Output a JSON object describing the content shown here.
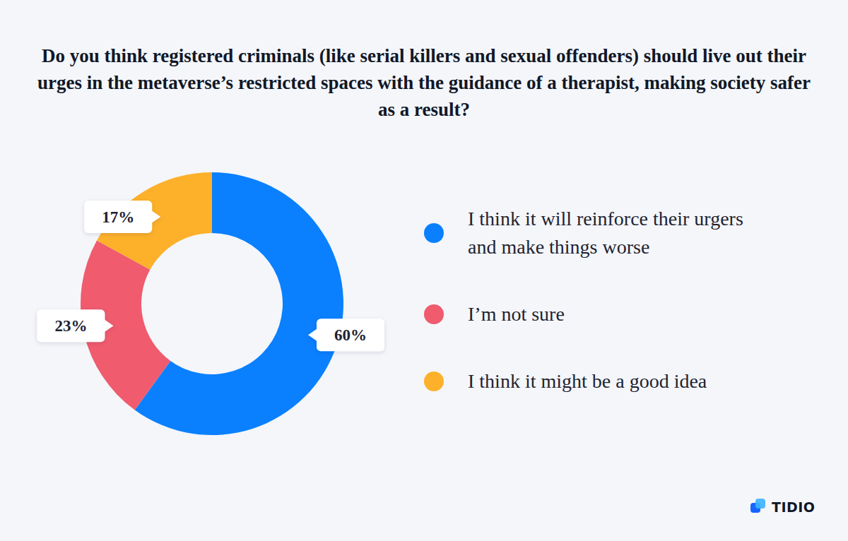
{
  "chart_data": {
    "type": "donut",
    "title": "Do you think registered criminals (like serial killers and sexual offenders) should live out their urges in the metaverse’s restricted spaces with the guidance of a therapist, making society safer as a result?",
    "categories": [
      "I think it will reinforce their urgers and make things worse",
      "I’m not sure",
      "I think it might be a good idea"
    ],
    "values": [
      60,
      23,
      17
    ],
    "value_labels": [
      "60%",
      "23%",
      "17%"
    ],
    "colors": [
      "#0a80fe",
      "#f05b6e",
      "#fdb12a"
    ],
    "data_labels": true,
    "legend": "right",
    "brand": "TIDIO"
  }
}
